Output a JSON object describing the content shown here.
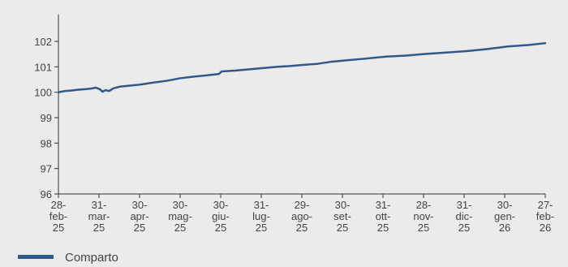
{
  "chart_data": {
    "type": "line",
    "title": "",
    "xlabel": "",
    "ylabel": "",
    "ylim": [
      96,
      102.6
    ],
    "yticks": [
      96,
      97,
      98,
      99,
      100,
      101,
      102
    ],
    "x_tick_labels": [
      [
        "28-",
        "feb-",
        "25"
      ],
      [
        "31-",
        "mar-",
        "25"
      ],
      [
        "30-",
        "apr-",
        "25"
      ],
      [
        "30-",
        "mag-",
        "25"
      ],
      [
        "30-",
        "giu-",
        "25"
      ],
      [
        "31-",
        "lug-",
        "25"
      ],
      [
        "29-",
        "ago-",
        "25"
      ],
      [
        "30-",
        "set-",
        "25"
      ],
      [
        "31-",
        "ott-",
        "25"
      ],
      [
        "28-",
        "nov-",
        "25"
      ],
      [
        "31-",
        "dic-",
        "25"
      ],
      [
        "30-",
        "gen-",
        "26"
      ],
      [
        "27-",
        "feb-",
        "26"
      ]
    ],
    "grid": false,
    "legend": "bottom-left",
    "series": [
      {
        "name": "Comparto",
        "color": "#2f5a8a",
        "points": [
          [
            "28-feb-25",
            100.0
          ],
          [
            "05-mar-25",
            100.05
          ],
          [
            "10-mar-25",
            100.07
          ],
          [
            "15-mar-25",
            100.1
          ],
          [
            "20-mar-25",
            100.12
          ],
          [
            "25-mar-25",
            100.15
          ],
          [
            "28-mar-25",
            100.18
          ],
          [
            "31-mar-25",
            100.12
          ],
          [
            "02-apr-25",
            100.02
          ],
          [
            "04-apr-25",
            100.08
          ],
          [
            "07-apr-25",
            100.05
          ],
          [
            "10-apr-25",
            100.15
          ],
          [
            "15-apr-25",
            100.22
          ],
          [
            "20-apr-25",
            100.25
          ],
          [
            "30-apr-25",
            100.3
          ],
          [
            "10-mag-25",
            100.38
          ],
          [
            "20-mag-25",
            100.45
          ],
          [
            "30-mag-25",
            100.55
          ],
          [
            "10-giu-25",
            100.62
          ],
          [
            "20-giu-25",
            100.67
          ],
          [
            "28-giu-25",
            100.72
          ],
          [
            "30-giu-25",
            100.82
          ],
          [
            "10-lug-25",
            100.85
          ],
          [
            "20-lug-25",
            100.9
          ],
          [
            "31-lug-25",
            100.95
          ],
          [
            "10-ago-25",
            101.0
          ],
          [
            "20-ago-25",
            101.03
          ],
          [
            "29-ago-25",
            101.07
          ],
          [
            "10-set-25",
            101.12
          ],
          [
            "20-set-25",
            101.2
          ],
          [
            "30-set-25",
            101.25
          ],
          [
            "15-ott-25",
            101.32
          ],
          [
            "31-ott-25",
            101.4
          ],
          [
            "15-nov-25",
            101.44
          ],
          [
            "28-nov-25",
            101.5
          ],
          [
            "15-dic-25",
            101.56
          ],
          [
            "31-dic-25",
            101.62
          ],
          [
            "15-gen-26",
            101.7
          ],
          [
            "30-gen-26",
            101.8
          ],
          [
            "15-feb-26",
            101.86
          ],
          [
            "27-feb-26",
            101.93
          ]
        ]
      }
    ]
  }
}
